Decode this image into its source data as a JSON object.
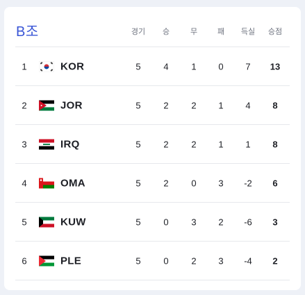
{
  "group": {
    "title": "B조"
  },
  "columns": [
    "경기",
    "승",
    "무",
    "패",
    "득실",
    "승점"
  ],
  "rows": [
    {
      "rank": "1",
      "team": "KOR",
      "flag": "korea-flag-icon",
      "played": "5",
      "won": "4",
      "draw": "1",
      "lost": "0",
      "gd": "7",
      "points": "13"
    },
    {
      "rank": "2",
      "team": "JOR",
      "flag": "jordan-flag-icon",
      "played": "5",
      "won": "2",
      "draw": "2",
      "lost": "1",
      "gd": "4",
      "points": "8"
    },
    {
      "rank": "3",
      "team": "IRQ",
      "flag": "iraq-flag-icon",
      "played": "5",
      "won": "2",
      "draw": "2",
      "lost": "1",
      "gd": "1",
      "points": "8"
    },
    {
      "rank": "4",
      "team": "OMA",
      "flag": "oman-flag-icon",
      "played": "5",
      "won": "2",
      "draw": "0",
      "lost": "3",
      "gd": "-2",
      "points": "6"
    },
    {
      "rank": "5",
      "team": "KUW",
      "flag": "kuwait-flag-icon",
      "played": "5",
      "won": "0",
      "draw": "3",
      "lost": "2",
      "gd": "-6",
      "points": "3"
    },
    {
      "rank": "6",
      "team": "PLE",
      "flag": "palestine-flag-icon",
      "played": "5",
      "won": "0",
      "draw": "2",
      "lost": "3",
      "gd": "-4",
      "points": "2"
    }
  ]
}
